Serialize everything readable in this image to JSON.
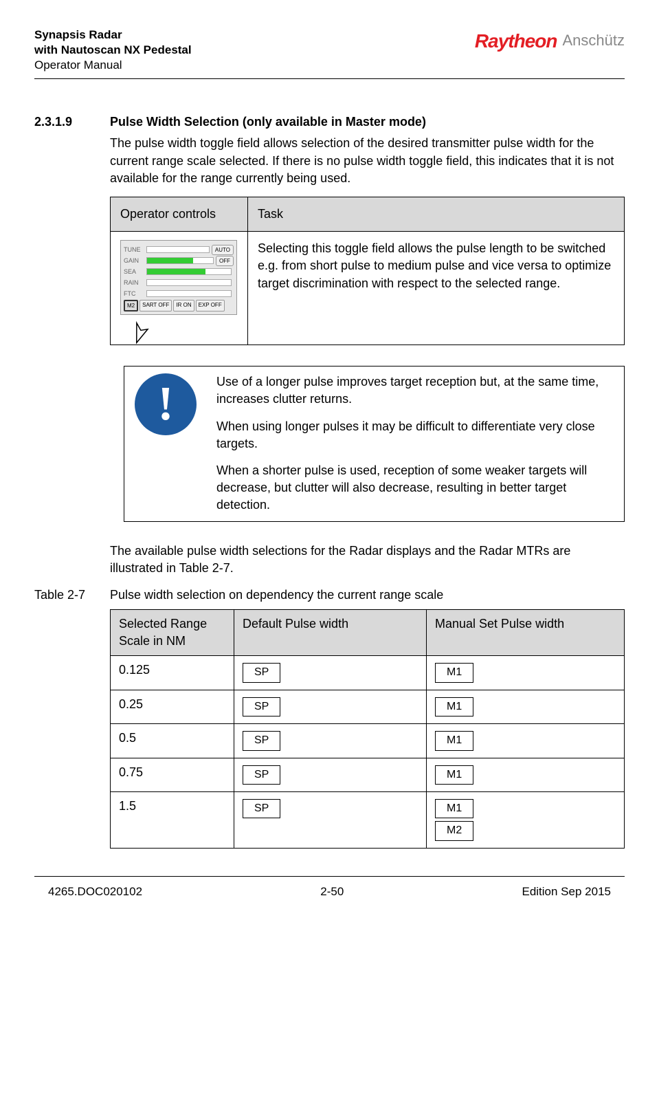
{
  "header": {
    "product_line1": "Synapsis Radar",
    "product_line2": "with Nautoscan NX Pedestal",
    "doc_type": "Operator Manual",
    "brand1": "Raytheon",
    "brand2": "Anschütz"
  },
  "section": {
    "number": "2.3.1.9",
    "title": "Pulse Width Selection (only available in Master mode)",
    "intro": "The pulse width toggle field allows selection of the desired transmitter pulse width for the current range scale selected. If there is no pulse width toggle field, this indicates that it is not available for the range currently being used."
  },
  "table1": {
    "header_col1": "Operator controls",
    "header_col2": "Task",
    "task_text": "Selecting this toggle field allows the pulse length to be switched e.g. from short pulse to medium pulse and vice versa to optimize target discrimination with respect to the selected range."
  },
  "controls": {
    "labels": [
      "TUNE",
      "GAIN",
      "SEA",
      "RAIN",
      "FTC"
    ],
    "btn_auto": "AUTO",
    "btn_off": "OFF",
    "bottom": [
      "M2",
      "SART OFF",
      "IR ON",
      "EXP OFF"
    ]
  },
  "note": {
    "p1": "Use of a longer pulse improves target reception but, at the same time, increases clutter returns.",
    "p2": "When using longer pulses it may be difficult to differentiate very close targets.",
    "p3": "When a shorter pulse is used, reception of some weaker targets will decrease, but clutter will also decrease, resulting in better target detection."
  },
  "after_note": "The available pulse width selections for the Radar displays and the Radar MTRs are illustrated in Table 2-7.",
  "table2": {
    "caption_label": "Table 2-7",
    "caption_text": "Pulse width selection on dependency the current range scale",
    "h1": "Selected Range Scale in NM",
    "h2": "Default Pulse width",
    "h3": "Manual Set Pulse width",
    "rows": [
      {
        "range": "0.125",
        "default": [
          "SP"
        ],
        "manual": [
          "M1"
        ]
      },
      {
        "range": "0.25",
        "default": [
          "SP"
        ],
        "manual": [
          "M1"
        ]
      },
      {
        "range": "0.5",
        "default": [
          "SP"
        ],
        "manual": [
          "M1"
        ]
      },
      {
        "range": "0.75",
        "default": [
          "SP"
        ],
        "manual": [
          "M1"
        ]
      },
      {
        "range": "1.5",
        "default": [
          "SP"
        ],
        "manual": [
          "M1",
          "M2"
        ]
      }
    ]
  },
  "footer": {
    "doc_id": "4265.DOC020102",
    "page": "2-50",
    "edition": "Edition Sep 2015"
  },
  "colors": {
    "header_bg": "#d9d9d9",
    "brand_red": "#e31e24",
    "note_blue": "#1e5a9e"
  }
}
